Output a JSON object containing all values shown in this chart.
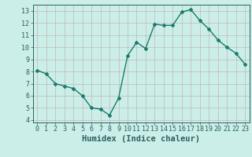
{
  "x": [
    0,
    1,
    2,
    3,
    4,
    5,
    6,
    7,
    8,
    9,
    10,
    11,
    12,
    13,
    14,
    15,
    16,
    17,
    18,
    19,
    20,
    21,
    22,
    23
  ],
  "y": [
    8.1,
    7.8,
    7.0,
    6.8,
    6.6,
    6.0,
    5.0,
    4.9,
    4.4,
    5.8,
    9.3,
    10.4,
    9.9,
    11.9,
    11.8,
    11.8,
    12.9,
    13.1,
    12.2,
    11.5,
    10.6,
    10.0,
    9.5,
    8.6
  ],
  "line_color": "#1a7a6e",
  "marker": "D",
  "markersize": 2.0,
  "linewidth": 1.0,
  "xlabel": "Humidex (Indice chaleur)",
  "xlim": [
    -0.5,
    23.5
  ],
  "ylim": [
    3.8,
    13.5
  ],
  "yticks": [
    4,
    5,
    6,
    7,
    8,
    9,
    10,
    11,
    12,
    13
  ],
  "xticks": [
    0,
    1,
    2,
    3,
    4,
    5,
    6,
    7,
    8,
    9,
    10,
    11,
    12,
    13,
    14,
    15,
    16,
    17,
    18,
    19,
    20,
    21,
    22,
    23
  ],
  "xtick_labels": [
    "0",
    "1",
    "2",
    "3",
    "4",
    "5",
    "6",
    "7",
    "8",
    "9",
    "10",
    "11",
    "12",
    "13",
    "14",
    "15",
    "16",
    "17",
    "18",
    "19",
    "20",
    "21",
    "22",
    "23"
  ],
  "bg_color": "#cceee8",
  "grid_color": "#c0b8b8",
  "tick_fontsize": 6,
  "xlabel_fontsize": 7.5
}
